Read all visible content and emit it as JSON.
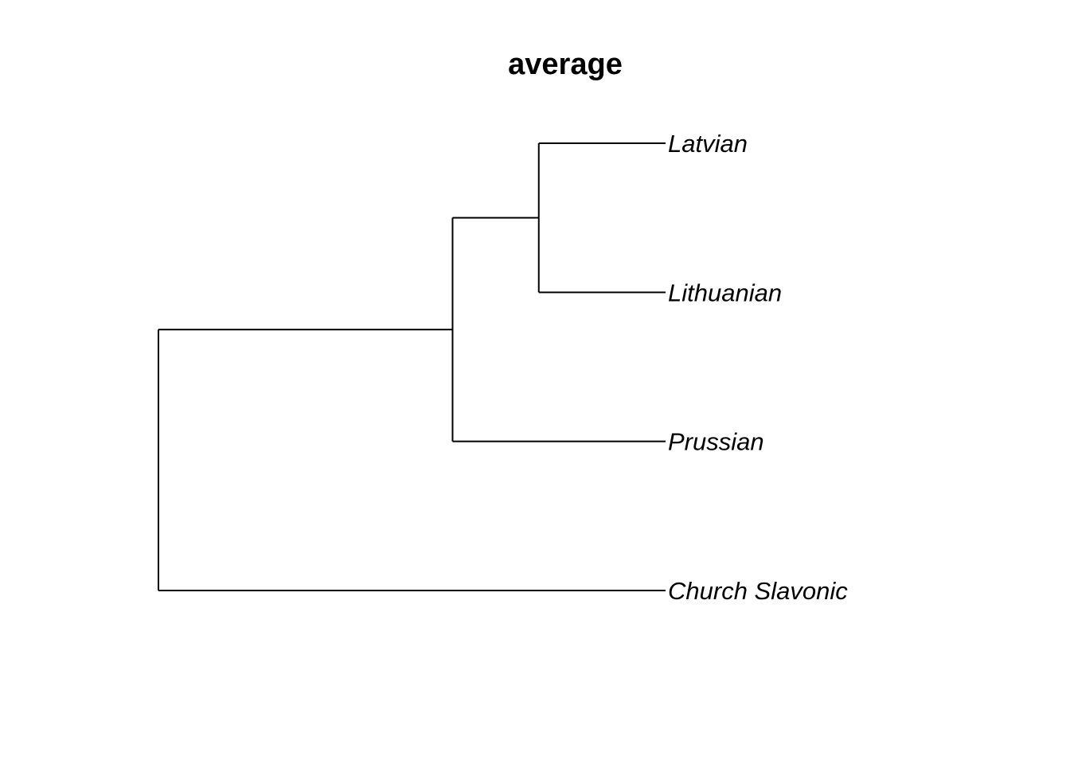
{
  "title": "average",
  "chart_data": {
    "type": "dendrogram",
    "orientation": "horizontal",
    "title": "average",
    "leaves": [
      "Latvian",
      "Lithuanian",
      "Prussian",
      "Church Slavonic"
    ],
    "merges": [
      {
        "id": "n1",
        "children": [
          "Latvian",
          "Lithuanian"
        ],
        "height": 0.25
      },
      {
        "id": "n2",
        "children": [
          "n1",
          "Prussian"
        ],
        "height": 0.42
      },
      {
        "id": "n3",
        "children": [
          "n2",
          "Church Slavonic"
        ],
        "height": 1.0
      }
    ],
    "colors": {
      "line": "#000000",
      "text": "#000000"
    }
  }
}
